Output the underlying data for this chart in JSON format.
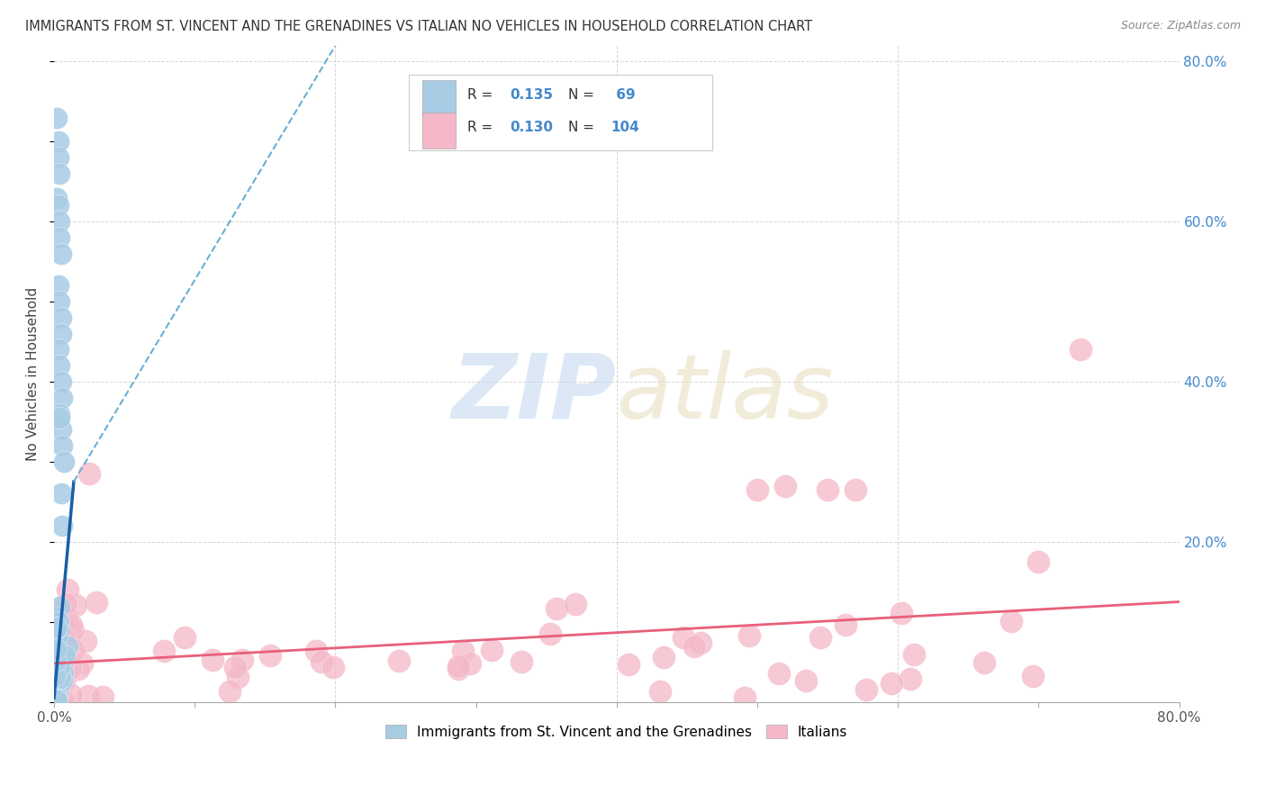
{
  "title": "IMMIGRANTS FROM ST. VINCENT AND THE GRENADINES VS ITALIAN NO VEHICLES IN HOUSEHOLD CORRELATION CHART",
  "source": "Source: ZipAtlas.com",
  "ylabel": "No Vehicles in Household",
  "right_yticks": [
    "80.0%",
    "60.0%",
    "40.0%",
    "20.0%"
  ],
  "right_ytick_vals": [
    0.8,
    0.6,
    0.4,
    0.2
  ],
  "legend_blue_R": "0.135",
  "legend_blue_N": "69",
  "legend_pink_R": "0.130",
  "legend_pink_N": "104",
  "legend_label_blue": "Immigrants from St. Vincent and the Grenadines",
  "legend_label_pink": "Italians",
  "blue_color": "#a8cce4",
  "pink_color": "#f4b8c8",
  "blue_line_solid_color": "#1a5fa8",
  "blue_line_dash_color": "#6baed6",
  "pink_line_color": "#e8607a",
  "legend_R_N_color": "#4488cc",
  "legend_text_color": "#333333",
  "xlim": [
    0.0,
    0.8
  ],
  "ylim": [
    0.0,
    0.82
  ],
  "blue_solid_trend_x": [
    0.0,
    0.014
  ],
  "blue_solid_trend_y": [
    0.005,
    0.275
  ],
  "blue_dash_trend_x": [
    0.014,
    0.2
  ],
  "blue_dash_trend_y": [
    0.275,
    0.82
  ],
  "pink_trend_x": [
    0.0,
    0.8
  ],
  "pink_trend_y": [
    0.048,
    0.125
  ],
  "background_color": "#ffffff",
  "grid_color": "#cccccc",
  "watermark_zip_color": "#c5daf0",
  "watermark_atlas_color": "#e8dfc0"
}
